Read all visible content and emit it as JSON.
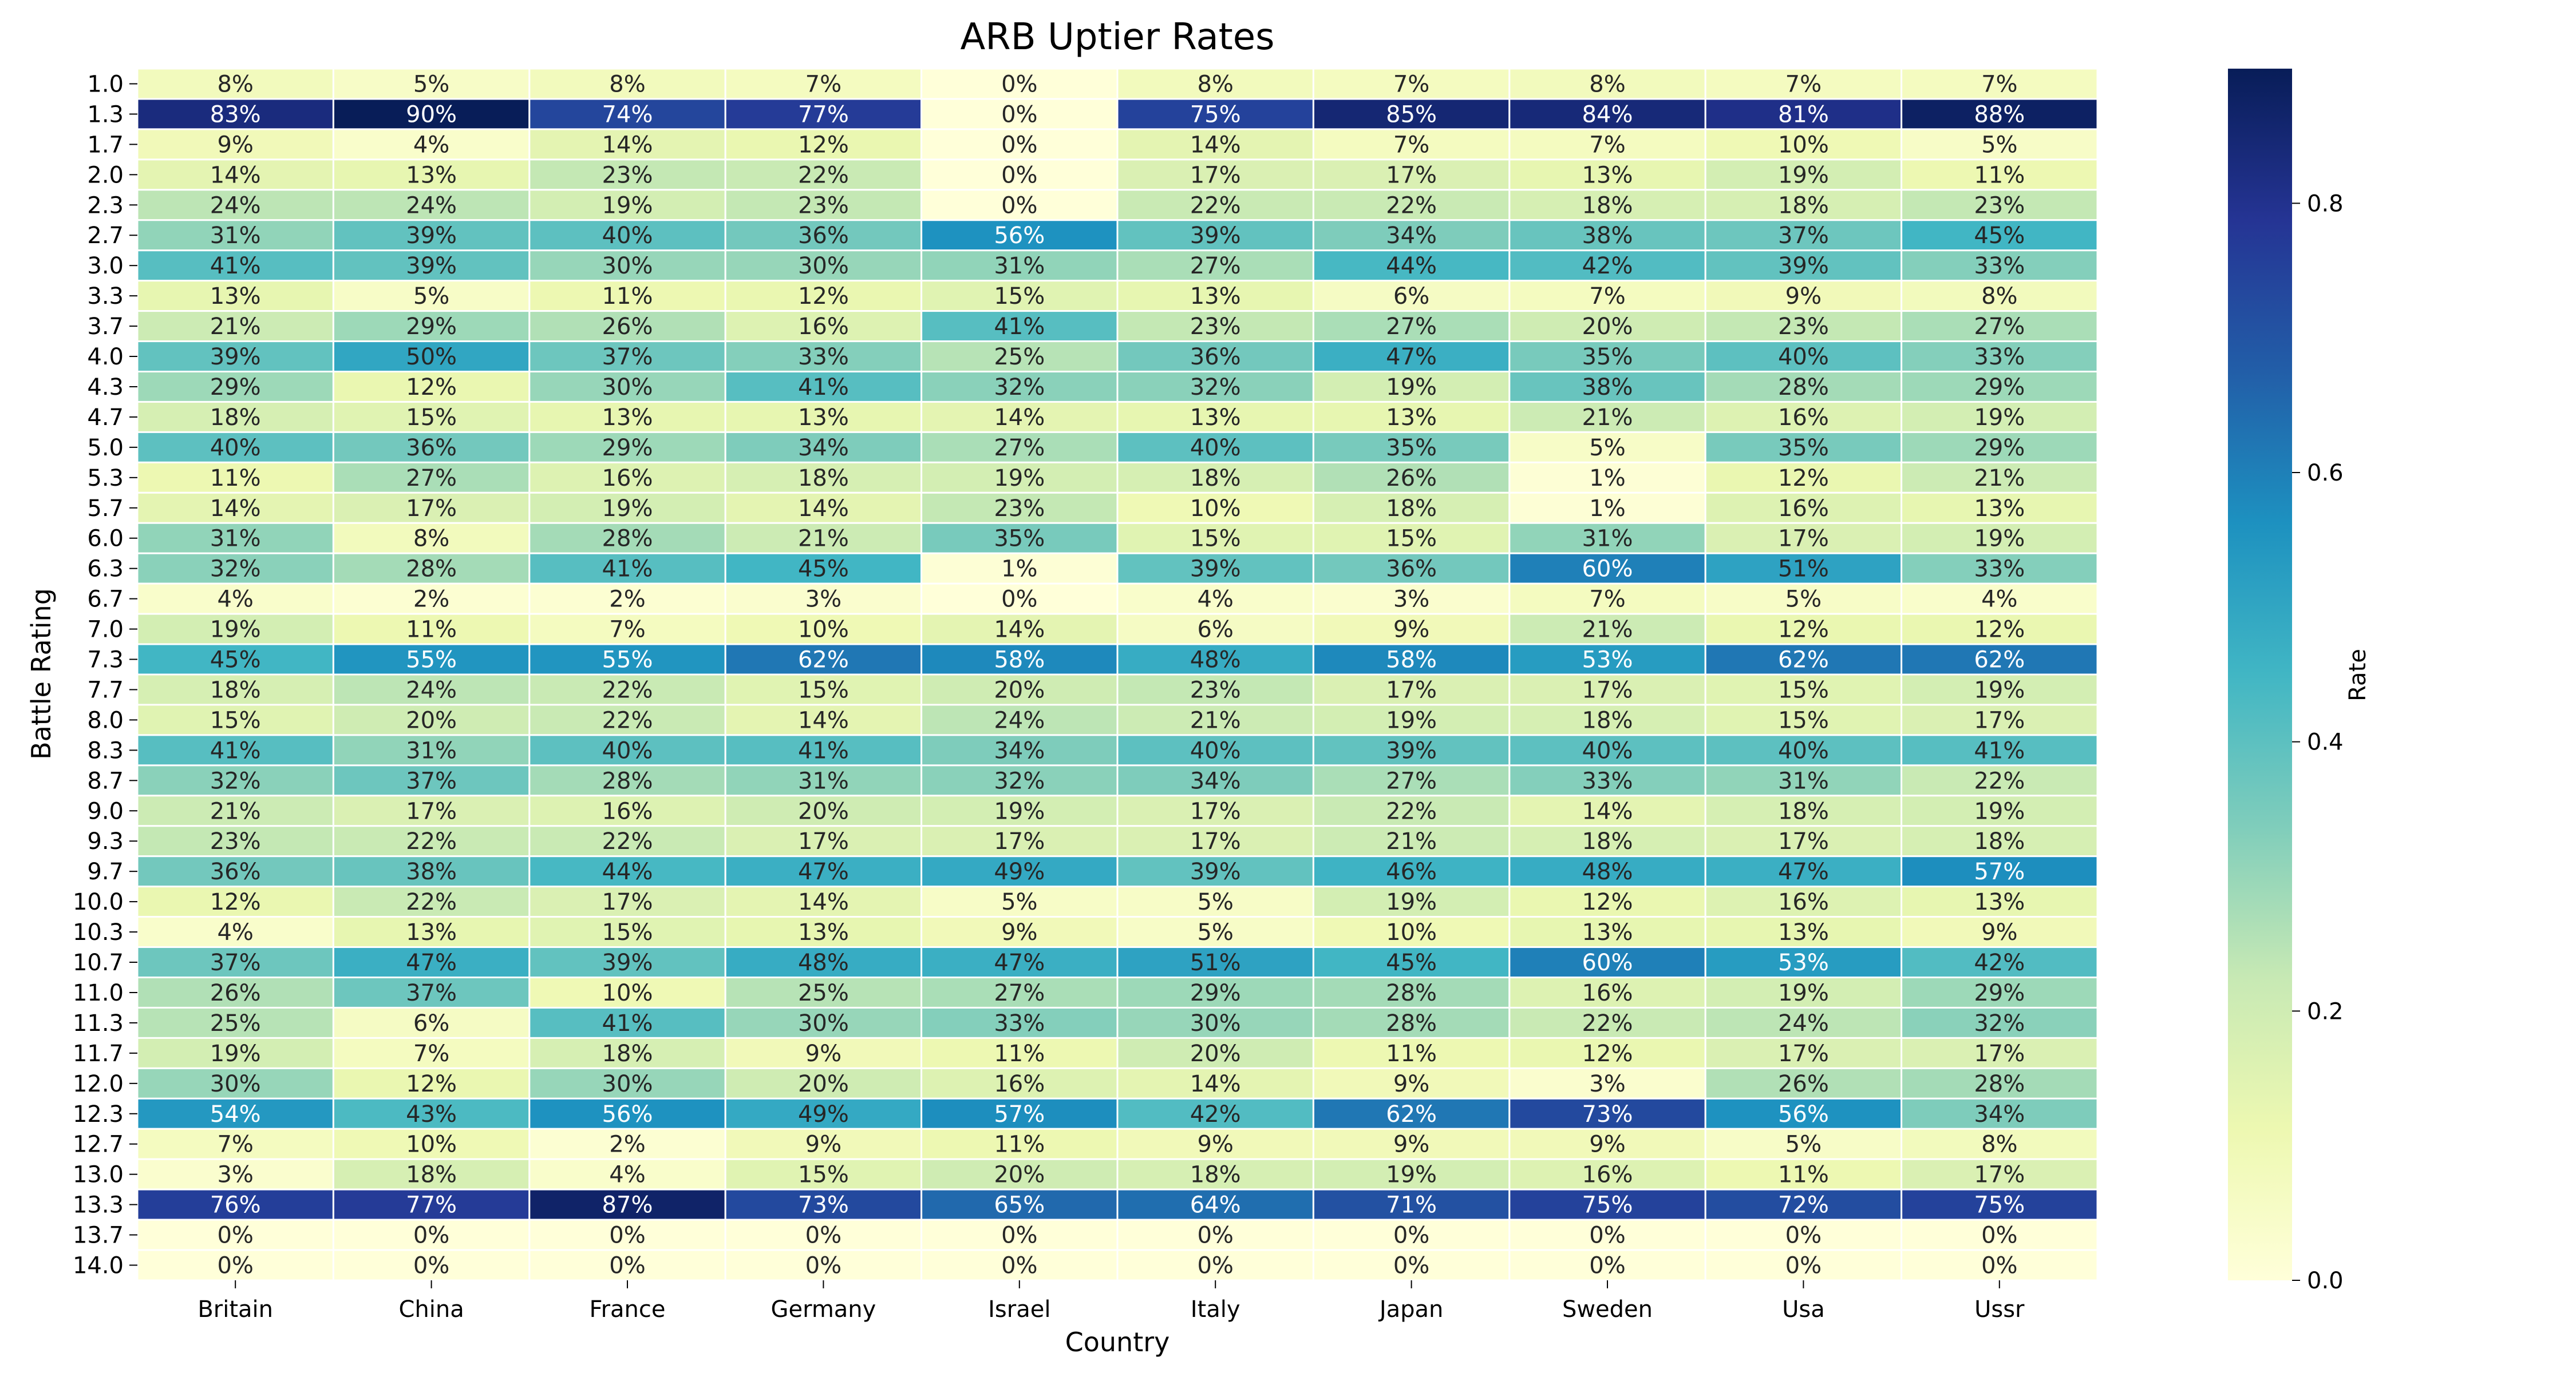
{
  "chart_data": {
    "type": "heatmap",
    "title": "ARB Uptier Rates",
    "xlabel": "Country",
    "ylabel": "Battle Rating",
    "colorbar_label": "Rate",
    "colorbar_ticks": [
      "0.0",
      "0.2",
      "0.4",
      "0.6",
      "0.8"
    ],
    "colorbar_tick_values": [
      0.0,
      0.2,
      0.4,
      0.6,
      0.8
    ],
    "colorbar_range": [
      0,
      0.9
    ],
    "colormap": "YlGnBu",
    "colormap_stops": [
      "#ffffd9",
      "#edf8b1",
      "#c7e9b4",
      "#7fcdbb",
      "#41b6c4",
      "#1d91c0",
      "#225ea8",
      "#253494",
      "#081d58"
    ],
    "annotation_text_dark": "#262626",
    "annotation_text_light": "#ffffff",
    "columns": [
      "Britain",
      "China",
      "France",
      "Germany",
      "Israel",
      "Italy",
      "Japan",
      "Sweden",
      "Usa",
      "Ussr"
    ],
    "rows": [
      "1.0",
      "1.3",
      "1.7",
      "2.0",
      "2.3",
      "2.7",
      "3.0",
      "3.3",
      "3.7",
      "4.0",
      "4.3",
      "4.7",
      "5.0",
      "5.3",
      "5.7",
      "6.0",
      "6.3",
      "6.7",
      "7.0",
      "7.3",
      "7.7",
      "8.0",
      "8.3",
      "8.7",
      "9.0",
      "9.3",
      "9.7",
      "10.0",
      "10.3",
      "10.7",
      "11.0",
      "11.3",
      "11.7",
      "12.0",
      "12.3",
      "12.7",
      "13.0",
      "13.3",
      "13.7",
      "14.0"
    ],
    "values": [
      [
        8,
        5,
        8,
        7,
        0,
        8,
        7,
        8,
        7,
        7
      ],
      [
        83,
        90,
        74,
        77,
        0,
        75,
        85,
        84,
        81,
        88
      ],
      [
        9,
        4,
        14,
        12,
        0,
        14,
        7,
        7,
        10,
        5
      ],
      [
        14,
        13,
        23,
        22,
        0,
        17,
        17,
        13,
        19,
        11
      ],
      [
        24,
        24,
        19,
        23,
        0,
        22,
        22,
        18,
        18,
        23
      ],
      [
        31,
        39,
        40,
        36,
        56,
        39,
        34,
        38,
        37,
        45
      ],
      [
        41,
        39,
        30,
        30,
        31,
        27,
        44,
        42,
        39,
        33
      ],
      [
        13,
        5,
        11,
        12,
        15,
        13,
        6,
        7,
        9,
        8
      ],
      [
        21,
        29,
        26,
        16,
        41,
        23,
        27,
        20,
        23,
        27
      ],
      [
        39,
        50,
        37,
        33,
        25,
        36,
        47,
        35,
        40,
        33
      ],
      [
        29,
        12,
        30,
        41,
        32,
        32,
        19,
        38,
        28,
        29
      ],
      [
        18,
        15,
        13,
        13,
        14,
        13,
        13,
        21,
        16,
        19
      ],
      [
        40,
        36,
        29,
        34,
        27,
        40,
        35,
        5,
        35,
        29
      ],
      [
        11,
        27,
        16,
        18,
        19,
        18,
        26,
        1,
        12,
        21
      ],
      [
        14,
        17,
        19,
        14,
        23,
        10,
        18,
        1,
        16,
        13
      ],
      [
        31,
        8,
        28,
        21,
        35,
        15,
        15,
        31,
        17,
        19
      ],
      [
        32,
        28,
        41,
        45,
        1,
        39,
        36,
        60,
        51,
        33
      ],
      [
        4,
        2,
        2,
        3,
        0,
        4,
        3,
        7,
        5,
        4
      ],
      [
        19,
        11,
        7,
        10,
        14,
        6,
        9,
        21,
        12,
        12
      ],
      [
        45,
        55,
        55,
        62,
        58,
        48,
        58,
        53,
        62,
        62
      ],
      [
        18,
        24,
        22,
        15,
        20,
        23,
        17,
        17,
        15,
        19
      ],
      [
        15,
        20,
        22,
        14,
        24,
        21,
        19,
        18,
        15,
        17
      ],
      [
        41,
        31,
        40,
        41,
        34,
        40,
        39,
        40,
        40,
        41
      ],
      [
        32,
        37,
        28,
        31,
        32,
        34,
        27,
        33,
        31,
        22
      ],
      [
        21,
        17,
        16,
        20,
        19,
        17,
        22,
        14,
        18,
        19
      ],
      [
        23,
        22,
        22,
        17,
        17,
        17,
        21,
        18,
        17,
        18
      ],
      [
        36,
        38,
        44,
        47,
        49,
        39,
        46,
        48,
        47,
        57
      ],
      [
        12,
        22,
        17,
        14,
        5,
        5,
        19,
        12,
        16,
        13
      ],
      [
        4,
        13,
        15,
        13,
        9,
        5,
        10,
        13,
        13,
        9
      ],
      [
        37,
        47,
        39,
        48,
        47,
        51,
        45,
        60,
        53,
        42
      ],
      [
        26,
        37,
        10,
        25,
        27,
        29,
        28,
        16,
        19,
        29
      ],
      [
        25,
        6,
        41,
        30,
        33,
        30,
        28,
        22,
        24,
        32
      ],
      [
        19,
        7,
        18,
        9,
        11,
        20,
        11,
        12,
        17,
        17
      ],
      [
        30,
        12,
        30,
        20,
        16,
        14,
        9,
        3,
        26,
        28
      ],
      [
        54,
        43,
        56,
        49,
        57,
        42,
        62,
        73,
        56,
        34
      ],
      [
        7,
        10,
        2,
        9,
        11,
        9,
        9,
        9,
        5,
        8
      ],
      [
        3,
        18,
        4,
        15,
        20,
        18,
        19,
        16,
        11,
        17
      ],
      [
        76,
        77,
        87,
        73,
        65,
        64,
        71,
        75,
        72,
        75
      ],
      [
        0,
        0,
        0,
        0,
        0,
        0,
        0,
        0,
        0,
        0
      ],
      [
        0,
        0,
        0,
        0,
        0,
        0,
        0,
        0,
        0,
        0
      ]
    ],
    "value_format": "{v}%"
  }
}
